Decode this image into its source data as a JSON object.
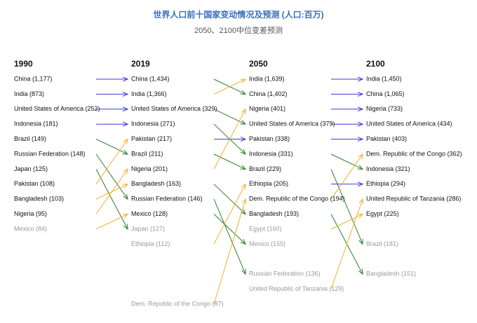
{
  "title": "世界人口前十国家变动情况及预测 (人口:百万)",
  "subtitle": "2050、2100中位变差预测",
  "columns": [
    {
      "year": "1990",
      "entries": [
        "China (1,177)",
        "India (873)",
        "United States of America (252)",
        "Indonesia (181)",
        "Brazil (149)",
        "Russian Federation (148)",
        "Japan (125)",
        "Pakistan (108)",
        "Bangladesh (103)",
        "Nigeria (95)",
        "Mexico (84)"
      ]
    },
    {
      "year": "2019",
      "entries": [
        "China (1,434)",
        "India (1,366)",
        "United States of America (329)",
        "Indonesia (271)",
        "Pakistan (217)",
        "Brazil (211)",
        "Nigeria (201)",
        "Bangladesh (163)",
        "Russian Federation (146)",
        "Mexico (128)",
        "Japan (127)",
        "Ethiopia (112)",
        "Dem. Republic of the Congo (87)"
      ]
    },
    {
      "year": "2050",
      "entries": [
        "India (1,639)",
        "China (1,402)",
        "Nigeria (401)",
        "United States of America (379)",
        "Pakistan (338)",
        "Indonesia (331)",
        "Brazil (229)",
        "Ethiopia (205)",
        "Dem. Republic of the Congo (194)",
        "Bangladesh (193)",
        "Egypt (160)",
        "Mexico (155)",
        "Russian Federation (136)",
        "United Republic of Tanzania (129)"
      ]
    },
    {
      "year": "2100",
      "entries": [
        "India (1,450)",
        "China (1,065)",
        "Nigeria (733)",
        "United States of America (434)",
        "Pakistan (403)",
        "Dem. Republic of the Congo (362)",
        "Indonesia (321)",
        "Ethiopia (294)",
        "United Republic of Tanzania (286)",
        "Egypt (225)",
        "Brazil (181)",
        "Bangladesh (151)"
      ]
    }
  ]
}
